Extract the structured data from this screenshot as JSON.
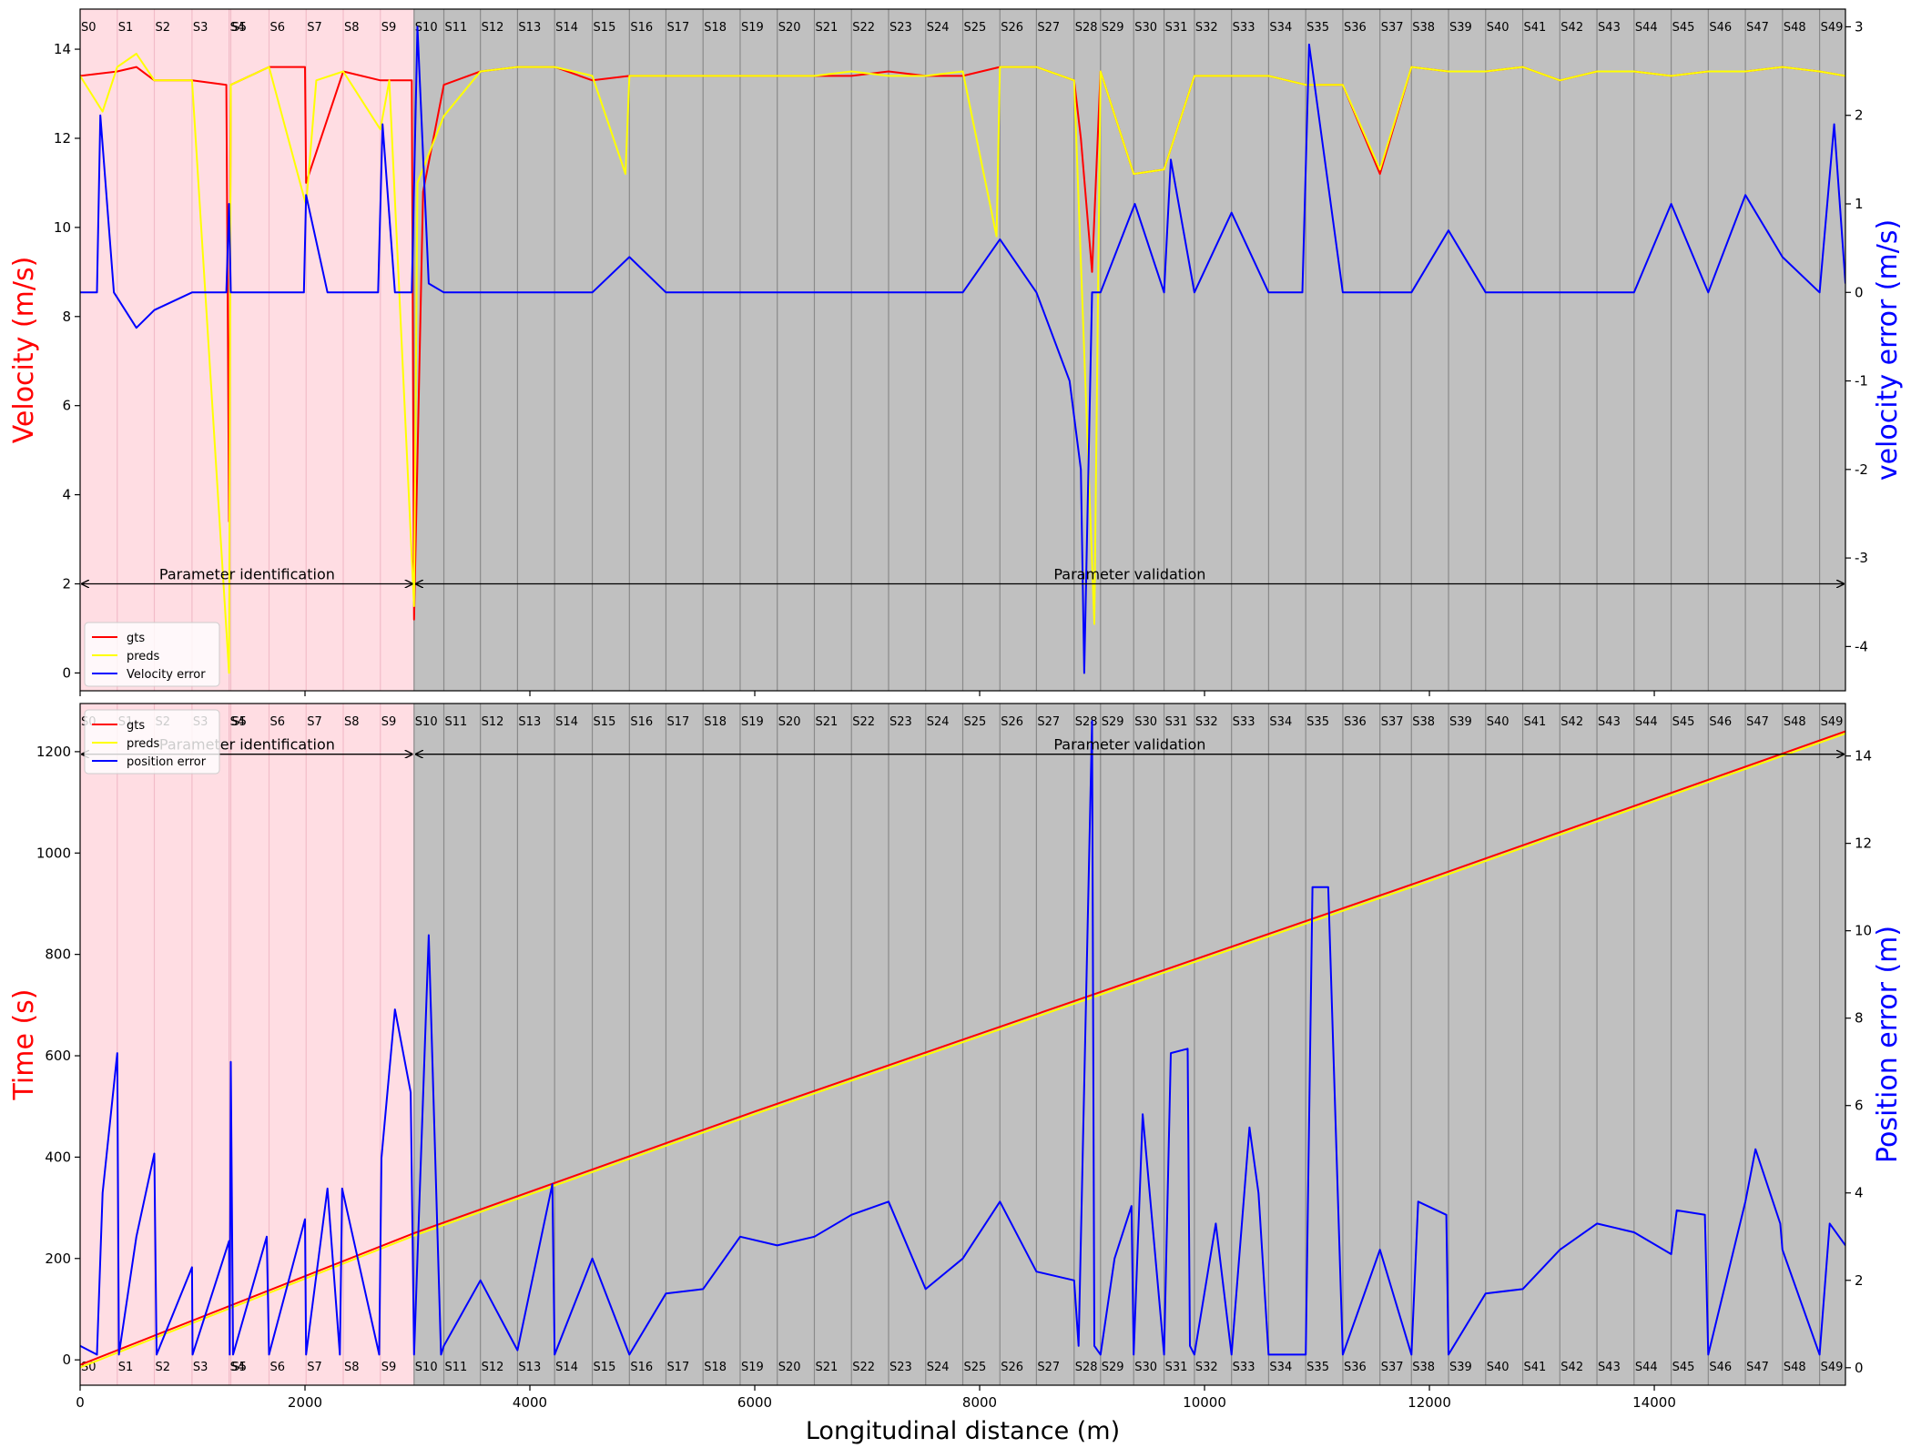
{
  "chart_data": [
    {
      "type": "line",
      "xlim": [
        0,
        15700
      ],
      "ylim_left": [
        -0.4,
        14.9
      ],
      "ylim_right": [
        -4.5,
        3.2
      ],
      "ylabel_left": "Velocity (m/s)",
      "ylabel_right": "velocity error (m/s)",
      "yticks_left": [
        0,
        2,
        4,
        6,
        8,
        10,
        12,
        14
      ],
      "yticks_right": [
        -4,
        -3,
        -2,
        -1,
        0,
        1,
        2,
        3
      ],
      "xticks": [
        0,
        2000,
        4000,
        6000,
        8000,
        10000,
        12000,
        14000
      ],
      "segments": [
        "S0",
        "S1",
        "S2",
        "S3",
        "S4",
        "S5",
        "S6",
        "S7",
        "S8",
        "S9",
        "S10",
        "S11",
        "S12",
        "S13",
        "S14",
        "S15",
        "S16",
        "S17",
        "S18",
        "S19",
        "S20",
        "S21",
        "S22",
        "S23",
        "S24",
        "S25",
        "S26",
        "S27",
        "S28",
        "S29",
        "S30",
        "S31",
        "S32",
        "S33",
        "S34",
        "S35",
        "S36",
        "S37",
        "S38",
        "S39",
        "S40",
        "S41",
        "S42",
        "S43",
        "S44",
        "S45",
        "S46",
        "S47",
        "S48",
        "S49"
      ],
      "segment_starts": [
        0,
        330,
        660,
        995,
        1325,
        1340,
        1680,
        2010,
        2340,
        2670,
        2970,
        3235,
        3560,
        3890,
        4220,
        4555,
        4885,
        5210,
        5540,
        5870,
        6200,
        6530,
        6860,
        7190,
        7520,
        7850,
        8180,
        8505,
        8840,
        9075,
        9370,
        9640,
        9910,
        10240,
        10570,
        10900,
        11230,
        11560,
        11840,
        12170,
        12500,
        12830,
        13160,
        13490,
        13820,
        14150,
        14480,
        14810,
        15140,
        15470
      ],
      "regions": [
        {
          "label": "Parameter identification",
          "x": [
            0,
            2970
          ],
          "y": 2.0
        },
        {
          "label": "Parameter validation",
          "x": [
            2970,
            15700
          ],
          "y": 2.0
        }
      ],
      "legend": {
        "placement": "lower-left",
        "entries": [
          "gts",
          "preds",
          "Velocity error"
        ]
      },
      "series": [
        {
          "name": "gts",
          "axis": "left",
          "color": "#ff0000",
          "x": [
            0,
            330,
            500,
            660,
            995,
            1300,
            1325,
            1340,
            1680,
            2000,
            2010,
            2340,
            2670,
            2950,
            2970,
            3050,
            3235,
            3560,
            3890,
            4220,
            4555,
            4885,
            5210,
            5540,
            5870,
            6200,
            6530,
            6860,
            7190,
            7520,
            7850,
            8180,
            8505,
            8840,
            8900,
            9000,
            9075,
            9370,
            9640,
            9910,
            10240,
            10570,
            10900,
            11230,
            11560,
            11840,
            12170,
            12500,
            12830,
            13160,
            13490,
            13820,
            14150,
            14480,
            14810,
            15140,
            15470,
            15700
          ],
          "y": [
            13.4,
            13.5,
            13.6,
            13.3,
            13.3,
            13.2,
            3.4,
            13.2,
            13.6,
            13.6,
            11.0,
            13.5,
            13.3,
            13.3,
            1.2,
            10.8,
            13.2,
            13.5,
            13.6,
            13.6,
            13.3,
            13.4,
            13.4,
            13.4,
            13.4,
            13.4,
            13.4,
            13.4,
            13.5,
            13.4,
            13.4,
            13.6,
            13.6,
            13.3,
            12.0,
            9.0,
            13.5,
            11.2,
            11.3,
            13.4,
            13.4,
            13.4,
            13.2,
            13.2,
            11.2,
            13.6,
            13.5,
            13.5,
            13.6,
            13.3,
            13.5,
            13.5,
            13.4,
            13.5,
            13.5,
            13.6,
            13.5,
            13.4
          ]
        },
        {
          "name": "preds",
          "axis": "left",
          "color": "#ffff00",
          "x": [
            0,
            200,
            330,
            500,
            660,
            995,
            1325,
            1340,
            1680,
            2010,
            2100,
            2340,
            2670,
            2750,
            2970,
            3000,
            3235,
            3560,
            3890,
            4220,
            4555,
            4850,
            4885,
            5210,
            5540,
            5870,
            6200,
            6530,
            6860,
            7190,
            7520,
            7850,
            8150,
            8180,
            8505,
            8840,
            9020,
            9075,
            9370,
            9640,
            9910,
            10240,
            10570,
            10900,
            11230,
            11560,
            11840,
            12170,
            12500,
            12830,
            13160,
            13490,
            13820,
            14150,
            14480,
            14810,
            15140,
            15470,
            15700
          ],
          "y": [
            13.4,
            12.6,
            13.6,
            13.9,
            13.3,
            13.3,
            0.0,
            13.2,
            13.6,
            10.5,
            13.3,
            13.5,
            12.2,
            13.3,
            1.5,
            11.0,
            12.5,
            13.5,
            13.6,
            13.6,
            13.4,
            11.2,
            13.4,
            13.4,
            13.4,
            13.4,
            13.4,
            13.4,
            13.5,
            13.4,
            13.4,
            13.5,
            9.8,
            13.6,
            13.6,
            13.3,
            1.1,
            13.5,
            11.2,
            11.3,
            13.4,
            13.4,
            13.4,
            13.2,
            13.2,
            11.3,
            13.6,
            13.5,
            13.5,
            13.6,
            13.3,
            13.5,
            13.5,
            13.4,
            13.5,
            13.5,
            13.6,
            13.5,
            13.4
          ]
        },
        {
          "name": "Velocity error",
          "axis": "right",
          "color": "#0000ff",
          "x": [
            0,
            150,
            180,
            300,
            500,
            660,
            995,
            1300,
            1325,
            1340,
            1680,
            1990,
            2010,
            2200,
            2340,
            2650,
            2690,
            2800,
            2950,
            3000,
            3100,
            3235,
            3560,
            3890,
            4220,
            4555,
            4885,
            5210,
            5540,
            5870,
            6200,
            6530,
            6860,
            7190,
            7520,
            7850,
            8180,
            8505,
            8800,
            8900,
            8930,
            9000,
            9075,
            9380,
            9640,
            9700,
            9910,
            10240,
            10570,
            10870,
            10930,
            11230,
            11560,
            11840,
            12170,
            12500,
            12830,
            13160,
            13490,
            13820,
            14150,
            14480,
            14810,
            15140,
            15470,
            15600,
            15700
          ],
          "y": [
            0.0,
            0.0,
            2.0,
            0.0,
            -0.4,
            -0.2,
            0.0,
            0.0,
            1.0,
            0.0,
            0.0,
            0.0,
            1.1,
            0.0,
            0.0,
            0.0,
            1.9,
            0.0,
            0.0,
            3.0,
            0.1,
            0.0,
            0.0,
            0.0,
            0.0,
            0.0,
            0.4,
            0.0,
            0.0,
            0.0,
            0.0,
            0.0,
            0.0,
            0.0,
            0.0,
            0.0,
            0.6,
            0.0,
            -1.0,
            -2.0,
            -4.3,
            0.0,
            0.0,
            1.0,
            0.0,
            1.5,
            0.0,
            0.9,
            0.0,
            0.0,
            2.8,
            0.0,
            0.0,
            0.0,
            0.7,
            0.0,
            0.0,
            0.0,
            0.0,
            0.0,
            1.0,
            0.0,
            1.1,
            0.4,
            0.0,
            1.9,
            0.1
          ]
        }
      ]
    },
    {
      "type": "line",
      "xlim": [
        0,
        15700
      ],
      "ylim_left": [
        -50,
        1295
      ],
      "ylim_right": [
        -0.4,
        15.2
      ],
      "xlabel": "Longitudinal distance (m)",
      "ylabel_left": "Time (s)",
      "ylabel_right": "Position error (m)",
      "yticks_left": [
        0,
        200,
        400,
        600,
        800,
        1000,
        1200
      ],
      "yticks_right": [
        0,
        2,
        4,
        6,
        8,
        10,
        12,
        14
      ],
      "xticks": [
        0,
        2000,
        4000,
        6000,
        8000,
        10000,
        12000,
        14000
      ],
      "xticklabels": [
        "0",
        "2000",
        "4000",
        "6000",
        "8000",
        "10000",
        "12000",
        "14000"
      ],
      "regions": [
        {
          "label": "Parameter identification",
          "x": [
            0,
            2970
          ],
          "y": 1195
        },
        {
          "label": "Parameter validation",
          "x": [
            2970,
            15700
          ],
          "y": 1195
        }
      ],
      "legend": {
        "placement": "upper-left",
        "entries": [
          "gts",
          "preds",
          "position error"
        ]
      },
      "series": [
        {
          "name": "gts",
          "axis": "left",
          "color": "#ff0000",
          "x": [
            0,
            2970,
            6000,
            9000,
            12000,
            15700
          ],
          "y": [
            -10,
            250,
            490,
            720,
            950,
            1240
          ]
        },
        {
          "name": "preds",
          "axis": "left",
          "color": "#ffff00",
          "x": [
            0,
            2970,
            6000,
            9000,
            12000,
            15700
          ],
          "y": [
            -15,
            245,
            485,
            715,
            945,
            1236
          ]
        },
        {
          "name": "position error",
          "axis": "right",
          "color": "#0000ff",
          "x": [
            0,
            150,
            200,
            330,
            345,
            500,
            660,
            680,
            995,
            1000,
            1325,
            1330,
            1340,
            1360,
            1660,
            1680,
            1700,
            2000,
            2010,
            2200,
            2310,
            2330,
            2660,
            2680,
            2800,
            2940,
            2970,
            3000,
            3100,
            3210,
            3235,
            3560,
            3890,
            4200,
            4220,
            4555,
            4885,
            5210,
            5540,
            5870,
            6200,
            6530,
            6860,
            7190,
            7520,
            7850,
            8180,
            8505,
            8840,
            8880,
            9000,
            9020,
            9075,
            9200,
            9350,
            9370,
            9450,
            9640,
            9700,
            9850,
            9870,
            9910,
            10100,
            10240,
            10400,
            10480,
            10570,
            10900,
            10960,
            11100,
            11230,
            11560,
            11840,
            11900,
            12150,
            12170,
            12500,
            12830,
            13160,
            13490,
            13820,
            14150,
            14200,
            14450,
            14480,
            14810,
            14900,
            15120,
            15140,
            15470,
            15560,
            15700
          ],
          "y": [
            0.5,
            0.3,
            4.0,
            7.2,
            0.3,
            3.0,
            4.9,
            0.3,
            2.3,
            0.3,
            2.9,
            0.3,
            7.0,
            0.3,
            3.0,
            0.3,
            0.5,
            3.4,
            0.3,
            4.1,
            0.3,
            4.1,
            0.3,
            4.8,
            8.2,
            6.3,
            0.3,
            2.5,
            9.9,
            0.3,
            0.5,
            2.0,
            0.4,
            4.2,
            0.3,
            2.5,
            0.3,
            1.7,
            1.8,
            3.0,
            2.8,
            3.0,
            3.5,
            3.8,
            1.8,
            2.5,
            3.8,
            2.2,
            2.0,
            0.5,
            14.8,
            0.5,
            0.3,
            2.5,
            3.7,
            0.3,
            5.8,
            0.3,
            7.2,
            7.3,
            0.5,
            0.3,
            3.3,
            0.3,
            5.5,
            4.0,
            0.3,
            0.3,
            11.0,
            11.0,
            0.3,
            2.7,
            0.3,
            3.8,
            3.5,
            0.3,
            1.7,
            1.8,
            2.7,
            3.3,
            3.1,
            2.6,
            3.6,
            3.5,
            0.3,
            3.8,
            5.0,
            3.3,
            2.7,
            0.3,
            3.3,
            2.8
          ]
        }
      ]
    }
  ]
}
